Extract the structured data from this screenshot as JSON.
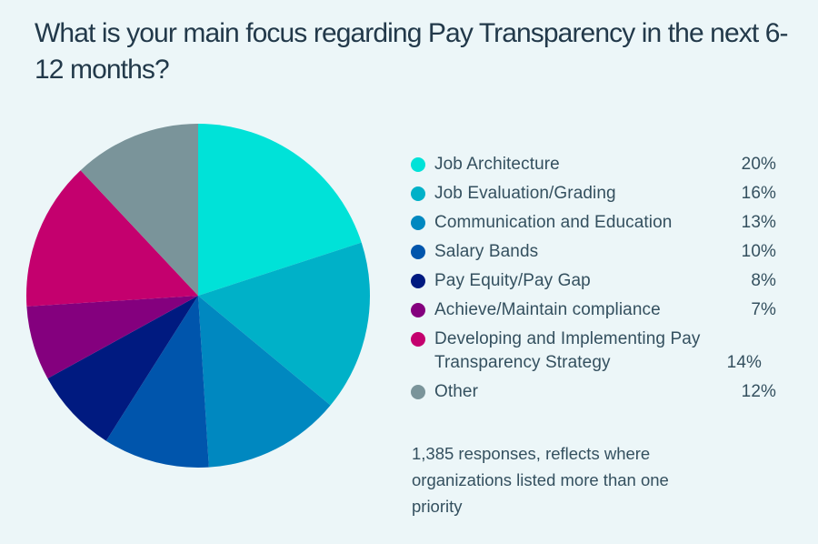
{
  "title": "What is your main focus regarding Pay Transparency in the next 6-12 months?",
  "legend": [
    {
      "label": "Job Architecture",
      "value": "20%",
      "color": "#00e2d8"
    },
    {
      "label": "Job Evaluation/Grading",
      "value": "16%",
      "color": "#00b1c8"
    },
    {
      "label": "Communication and Education",
      "value": "13%",
      "color": "#0088c0"
    },
    {
      "label": "Salary Bands",
      "value": "10%",
      "color": "#0055ac"
    },
    {
      "label": "Pay Equity/Pay Gap",
      "value": "8%",
      "color": "#001a80"
    },
    {
      "label": "Achieve/Maintain compliance",
      "value": "7%",
      "color": "#84007e"
    },
    {
      "label": "Developing and Implementing Pay Transparency Strategy",
      "value": "14%",
      "color": "#c4006e"
    },
    {
      "label": "Other",
      "value": "12%",
      "color": "#7a949a"
    }
  ],
  "note": "1,385 responses, reflects where organizations listed more than one priority",
  "chart_data": {
    "type": "pie",
    "title": "What is your main focus regarding Pay Transparency in the next 6-12 months?",
    "categories": [
      "Job Architecture",
      "Job Evaluation/Grading",
      "Communication and Education",
      "Salary Bands",
      "Pay Equity/Pay Gap",
      "Achieve/Maintain compliance",
      "Developing and Implementing Pay Transparency Strategy",
      "Other"
    ],
    "values": [
      20,
      16,
      13,
      10,
      8,
      7,
      14,
      12
    ],
    "colors": [
      "#00e2d8",
      "#00b1c8",
      "#0088c0",
      "#0055ac",
      "#001a80",
      "#84007e",
      "#c4006e",
      "#7a949a"
    ],
    "unit": "%",
    "start_angle": "12 o'clock",
    "direction": "clockwise",
    "legend_position": "right",
    "annotation": "1,385 responses, reflects where organizations listed more than one priority"
  }
}
